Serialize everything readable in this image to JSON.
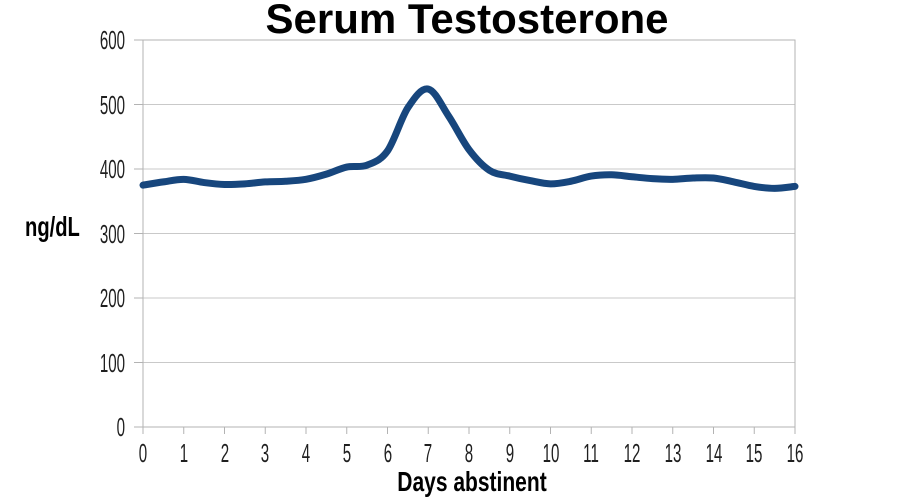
{
  "chart_data": {
    "type": "line",
    "title": "Serum Testosterone",
    "xlabel": "Days abstinent",
    "ylabel": "ng/dL",
    "x_ticks": [
      0,
      1,
      2,
      3,
      4,
      5,
      6,
      7,
      8,
      9,
      10,
      11,
      12,
      13,
      14,
      15,
      16
    ],
    "y_ticks": [
      0,
      100,
      200,
      300,
      400,
      500,
      600
    ],
    "xlim": [
      0,
      16
    ],
    "ylim": [
      0,
      600
    ],
    "grid": "horizontal-only",
    "legend": "none",
    "annotations": [
      "peak of ~525 ng/dL at day 7 of abstinence, baseline ~375-390 ng/dL otherwise"
    ],
    "series": [
      {
        "name": "Serum testosterone (ng/dL)",
        "x": [
          0,
          0.5,
          1,
          1.5,
          2,
          2.5,
          3,
          3.5,
          4,
          4.5,
          5,
          5.5,
          6,
          6.5,
          7,
          7.5,
          8,
          8.5,
          9,
          9.5,
          10,
          10.5,
          11,
          11.5,
          12,
          12.5,
          13,
          13.5,
          14,
          14.5,
          15,
          15.5,
          16
        ],
        "y": [
          375,
          380,
          384,
          379,
          376,
          377,
          380,
          381,
          384,
          392,
          403,
          406,
          428,
          495,
          524,
          482,
          430,
          398,
          389,
          382,
          377,
          381,
          389,
          391,
          388,
          385,
          384,
          386,
          386,
          380,
          373,
          370,
          373
        ]
      }
    ]
  },
  "colors": {
    "line": "#17467d",
    "grid": "#c9c9c9",
    "axis": "#b3b3b3",
    "tick_text": "#1f1f1f",
    "title_text": "#000000",
    "background": "#ffffff"
  }
}
